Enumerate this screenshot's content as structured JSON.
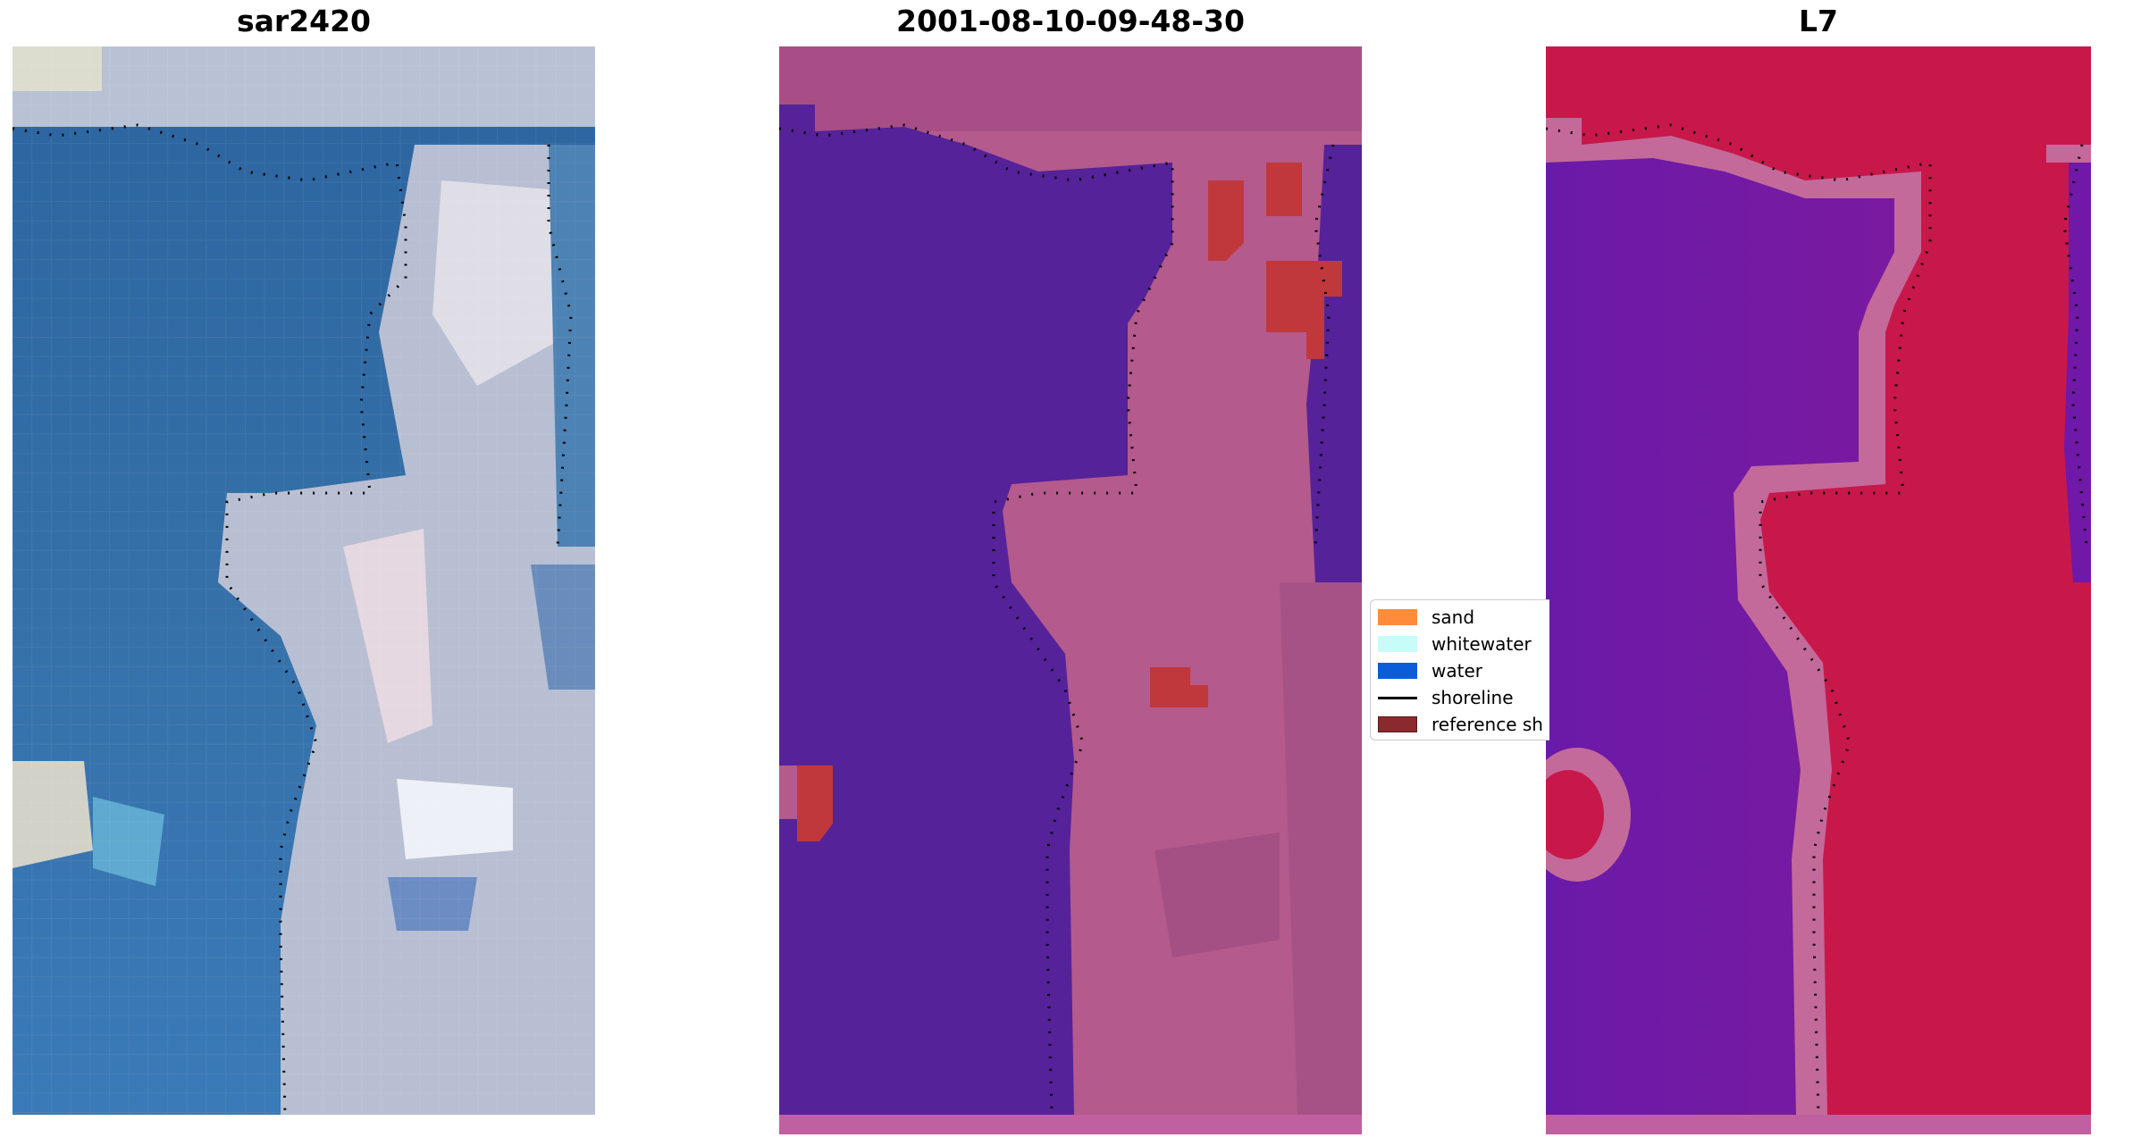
{
  "panels": [
    {
      "title": "sar2420",
      "kind": "rgb"
    },
    {
      "title": "2001-08-10-09-48-30",
      "kind": "classified"
    },
    {
      "title": "L7",
      "kind": "probability"
    }
  ],
  "legend": {
    "items": [
      {
        "label": "sand",
        "color": "#ff8c3a"
      },
      {
        "label": "whitewater",
        "color": "#c8fcf8"
      },
      {
        "label": "water",
        "color": "#0a5cd8"
      },
      {
        "label": "shoreline",
        "color": "#000000"
      },
      {
        "label": "reference sh",
        "color": "#8a2a2e"
      }
    ]
  },
  "colors": {
    "water_rgb": "#2f6aa4",
    "land_rgb": "#c8c8d2",
    "water_class": "#552299",
    "land_class": "#b45a8c",
    "sand_overlay": "#c0383c",
    "water_prob": "#6a1aa8",
    "land_prob": "#c8184a"
  }
}
